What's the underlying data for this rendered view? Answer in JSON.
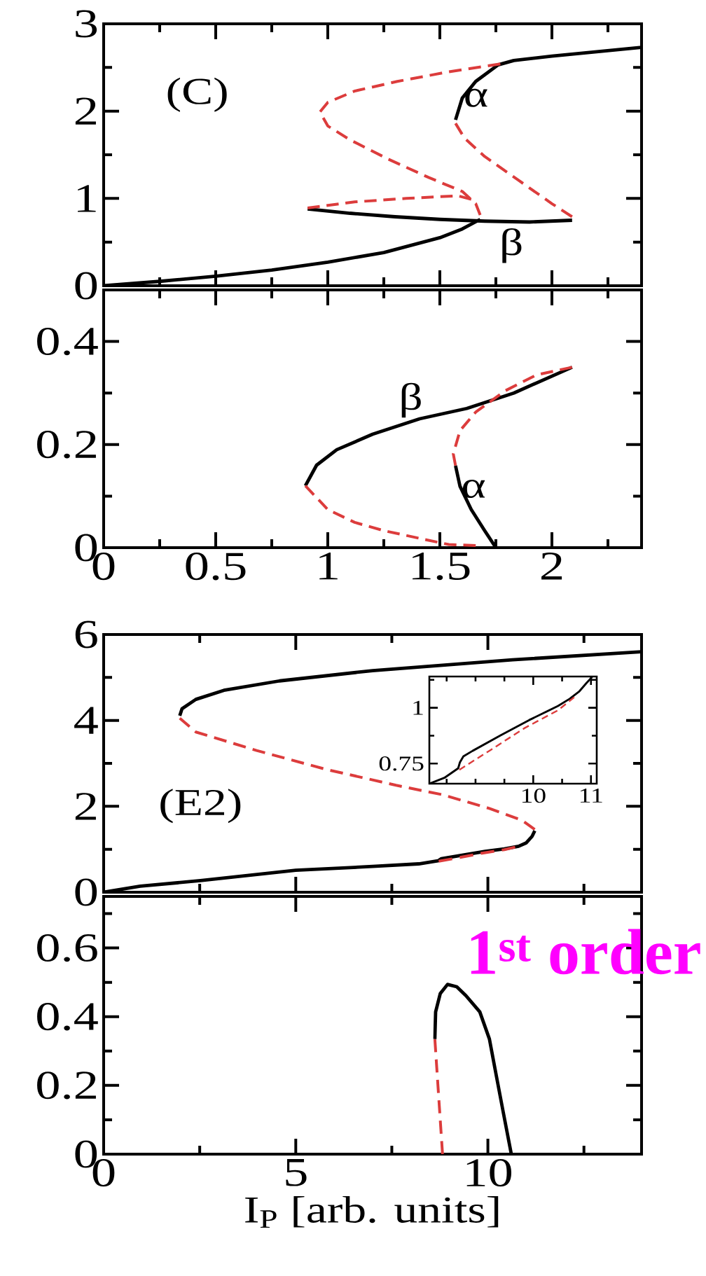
{
  "chart_data": [
    {
      "type": "line",
      "title": "(C)",
      "xlim": [
        0,
        2.4
      ],
      "ylim": [
        0,
        3
      ],
      "tick_labels": "y",
      "xticks": [
        0,
        {
          "value": 0.25,
          "label": null
        },
        0.5,
        {
          "value": 0.75,
          "label": null
        },
        1,
        {
          "value": 1.25,
          "label": null
        },
        1.5,
        {
          "value": 1.75,
          "label": null
        },
        2,
        {
          "value": 2.25,
          "label": null
        }
      ],
      "yticks": [
        0,
        {
          "value": 0.5,
          "label": null
        },
        1,
        {
          "value": 1.5,
          "label": null
        },
        2,
        {
          "value": 2.5,
          "label": null
        },
        3
      ],
      "series": [
        {
          "color": "#000000",
          "line_style": "solid",
          "x": [
            0,
            0.25,
            0.5,
            0.75,
            1,
            1.25,
            1.5,
            1.6,
            1.68
          ],
          "values": [
            0,
            0.05,
            0.11,
            0.18,
            0.27,
            0.38,
            0.55,
            0.65,
            0.76
          ]
        },
        {
          "color": "#000000",
          "line_style": "solid",
          "x": [
            0.91,
            1.1,
            1.3,
            1.5,
            1.7,
            1.9,
            2.09
          ],
          "values": [
            0.88,
            0.83,
            0.79,
            0.76,
            0.74,
            0.73,
            0.75
          ]
        },
        {
          "color": "#dc3c3c",
          "line_style": "dashed",
          "x": [
            2.09,
            2.0,
            1.85,
            1.7,
            1.61,
            1.57
          ],
          "values": [
            0.79,
            0.94,
            1.21,
            1.48,
            1.69,
            1.86
          ]
        },
        {
          "color": "#000000",
          "line_style": "solid",
          "x": [
            1.57,
            1.6,
            1.66,
            1.76,
            1.83,
            2.0,
            2.4
          ],
          "values": [
            1.9,
            2.15,
            2.34,
            2.53,
            2.58,
            2.63,
            2.73
          ]
        },
        {
          "color": "#dc3c3c",
          "line_style": "dashed",
          "x": [
            1.77,
            1.54,
            1.31,
            1.12,
            1.0,
            0.965,
            1.0,
            1.1,
            1.27,
            1.45,
            1.6,
            1.66,
            1.68
          ],
          "values": [
            2.54,
            2.45,
            2.34,
            2.23,
            2.1,
            1.99,
            1.83,
            1.67,
            1.45,
            1.24,
            1.08,
            0.94,
            0.81
          ]
        },
        {
          "color": "#dc3c3c",
          "line_style": "dashed",
          "x": [
            0.91,
            1.12,
            1.35,
            1.58,
            1.64
          ],
          "values": [
            0.89,
            0.96,
            1.0,
            1.03,
            0.99
          ]
        }
      ],
      "annotations": [
        "α",
        "β"
      ]
    },
    {
      "type": "line",
      "xlim": [
        0,
        2.4
      ],
      "ylim": [
        0,
        0.5
      ],
      "xticks": [
        0,
        {
          "value": 0.25,
          "label": null
        },
        0.5,
        {
          "value": 0.75,
          "label": null
        },
        1,
        {
          "value": 1.25,
          "label": null
        },
        1.5,
        {
          "value": 1.75,
          "label": null
        },
        2,
        {
          "value": 2.25,
          "label": null
        }
      ],
      "yticks": [
        0,
        {
          "value": 0.1,
          "label": null
        },
        0.2,
        {
          "value": 0.3,
          "label": null
        },
        0.4
      ],
      "series": [
        {
          "color": "#000000",
          "line_style": "solid",
          "x": [
            0.9,
            0.95,
            1.04,
            1.2,
            1.41,
            1.62,
            1.83,
            2.09
          ],
          "values": [
            0.12,
            0.16,
            0.19,
            0.22,
            0.25,
            0.27,
            0.3,
            0.35
          ]
        },
        {
          "color": "#dc3c3c",
          "line_style": "dashed",
          "x": [
            0.9,
            1.0,
            1.12,
            1.25,
            1.41,
            1.54,
            1.66
          ],
          "values": [
            0.12,
            0.074,
            0.049,
            0.033,
            0.018,
            0.006,
            0.004
          ]
        },
        {
          "color": "#dc3c3c",
          "line_style": "dashed",
          "x": [
            2.09,
            1.93,
            1.79,
            1.66,
            1.59,
            1.56,
            1.57
          ],
          "values": [
            0.35,
            0.335,
            0.304,
            0.263,
            0.227,
            0.182,
            0.159
          ]
        },
        {
          "color": "#000000",
          "line_style": "solid",
          "x": [
            1.57,
            1.59,
            1.64,
            1.7,
            1.75
          ],
          "values": [
            0.159,
            0.119,
            0.074,
            0.033,
            0
          ]
        }
      ],
      "annotations": [
        "β",
        "α"
      ]
    },
    {
      "type": "line",
      "title": "(E2)",
      "xlim": [
        0,
        14
      ],
      "ylim": [
        0,
        6
      ],
      "tick_labels": "y",
      "xticks": [
        0,
        {
          "value": 2.5,
          "label": null
        },
        5,
        {
          "value": 7.5,
          "label": null
        },
        10,
        {
          "value": 12.5,
          "label": null
        }
      ],
      "yticks": [
        0,
        {
          "value": 1,
          "label": null
        },
        2,
        {
          "value": 3,
          "label": null
        },
        4,
        {
          "value": 5,
          "label": null
        },
        6
      ],
      "series": [
        {
          "color": "#000000",
          "line_style": "solid",
          "x": [
            1.98,
            2.04,
            2.4,
            3.13,
            4.58,
            7.0,
            10.64,
            14
          ],
          "values": [
            4.11,
            4.27,
            4.49,
            4.7,
            4.92,
            5.16,
            5.41,
            5.6
          ]
        },
        {
          "color": "#dc3c3c",
          "line_style": "dashed",
          "x": [
            1.98,
            2.4,
            3.98,
            5.79,
            7.61,
            8.82,
            10.04,
            10.88,
            11.22
          ],
          "values": [
            4.05,
            3.73,
            3.3,
            2.86,
            2.49,
            2.27,
            1.95,
            1.68,
            1.46
          ]
        },
        {
          "color": "#000000",
          "line_style": "solid",
          "x": [
            0,
            0.95,
            2.52,
            5.0,
            7.0,
            8.2,
            8.7,
            8.79,
            9.44,
            9.93,
            10.43,
            10.8,
            11.0,
            11.15,
            11.22
          ],
          "values": [
            0,
            0.14,
            0.27,
            0.51,
            0.6,
            0.66,
            0.73,
            0.78,
            0.88,
            0.95,
            1.01,
            1.07,
            1.15,
            1.3,
            1.43
          ]
        },
        {
          "color": "#dc3c3c",
          "line_style": "dashed",
          "x": [
            8.72,
            9.28,
            9.85,
            10.43,
            10.71
          ],
          "values": [
            0.72,
            0.81,
            0.91,
            0.99,
            1.05
          ]
        }
      ]
    },
    {
      "type": "line",
      "xlim": [
        8.2,
        11.1
      ],
      "ylim": [
        0.66,
        1.14
      ],
      "xticks": [
        {
          "value": 8.5,
          "label": null
        },
        {
          "value": 9,
          "label": null
        },
        {
          "value": 9.5,
          "label": null
        },
        10,
        {
          "value": 10.5,
          "label": null
        },
        11
      ],
      "yticks": [
        0.75,
        {
          "value": 0.875,
          "label": null
        },
        1,
        {
          "value": 1.125,
          "label": null
        }
      ],
      "series": [
        {
          "color": "#000000",
          "line_style": "solid",
          "x": [
            8.2,
            8.46,
            8.7,
            8.73,
            8.79,
            8.95,
            9.44,
            9.93,
            10.43,
            10.63,
            10.8,
            10.92,
            11.02
          ],
          "values": [
            0.66,
            0.686,
            0.729,
            0.756,
            0.782,
            0.807,
            0.877,
            0.945,
            1.008,
            1.04,
            1.074,
            1.11,
            1.138
          ]
        },
        {
          "color": "#dc3c3c",
          "line_style": "dashed",
          "x": [
            8.72,
            9.28,
            9.85,
            10.43,
            10.71
          ],
          "values": [
            0.722,
            0.814,
            0.909,
            0.989,
            1.047
          ]
        }
      ]
    },
    {
      "type": "line",
      "xlabel": "I$_{P}$ [arb. units]",
      "xlim": [
        0,
        14
      ],
      "ylim": [
        0,
        0.75
      ],
      "xticks": [
        0,
        {
          "value": 2.5,
          "label": null
        },
        5,
        {
          "value": 7.5,
          "label": null
        },
        10,
        {
          "value": 12.5,
          "label": null
        }
      ],
      "yticks": [
        0,
        {
          "value": 0.1,
          "label": null
        },
        0.2,
        {
          "value": 0.3,
          "label": null
        },
        0.4,
        {
          "value": 0.5,
          "label": null
        },
        0.6,
        {
          "value": 0.7,
          "label": null
        }
      ],
      "series": [
        {
          "color": "#dc3c3c",
          "line_style": "dashed",
          "x": [
            8.62,
            8.7,
            8.82
          ],
          "values": [
            0.335,
            0.2,
            0
          ]
        },
        {
          "color": "#000000",
          "line_style": "solid",
          "x": [
            8.62,
            8.64,
            8.76,
            8.95,
            9.19,
            9.43,
            9.79,
            10.04,
            10.22,
            10.4,
            10.61
          ],
          "values": [
            0.335,
            0.414,
            0.467,
            0.494,
            0.487,
            0.461,
            0.414,
            0.335,
            0.228,
            0.122,
            0
          ]
        }
      ],
      "annotations": [
        "1$^{st}$ order"
      ]
    }
  ]
}
